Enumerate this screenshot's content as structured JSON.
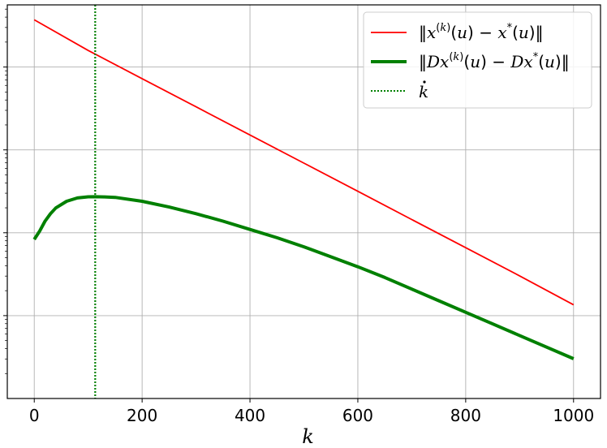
{
  "chart_data": {
    "type": "line",
    "xlabel": "k",
    "ylabel": "",
    "xlim": [
      -50,
      1050
    ],
    "ylim_log10": [
      -5.0,
      -0.25
    ],
    "y_scale": "log",
    "grid": true,
    "legend_position": "top-right",
    "x_ticks": [
      0,
      200,
      400,
      600,
      800,
      1000
    ],
    "x_tick_labels": [
      "0",
      "200",
      "400",
      "600",
      "800",
      "1000"
    ],
    "y_gridlines_log10": [
      -4,
      -3,
      -2,
      -1
    ],
    "series": [
      {
        "name": "‖x^(k)(u) − x*(u)‖",
        "style": "solid",
        "color": "#ff0000",
        "x": [
          0,
          100,
          200,
          300,
          400,
          500,
          600,
          700,
          800,
          900,
          1000
        ],
        "log10_y": [
          -0.43,
          -0.8,
          -1.14,
          -1.48,
          -1.82,
          -2.16,
          -2.5,
          -2.84,
          -3.18,
          -3.52,
          -3.87
        ]
      },
      {
        "name": "‖Dx^(k)(u) − Dx*(u)‖",
        "style": "solid-thick",
        "color": "#008000",
        "x": [
          0,
          10,
          20,
          30,
          40,
          60,
          80,
          100,
          113,
          130,
          150,
          200,
          250,
          300,
          350,
          400,
          450,
          500,
          550,
          600,
          650,
          700,
          750,
          800,
          850,
          900,
          950,
          1000
        ],
        "log10_y": [
          -3.08,
          -2.98,
          -2.86,
          -2.77,
          -2.7,
          -2.62,
          -2.58,
          -2.566,
          -2.565,
          -2.567,
          -2.573,
          -2.62,
          -2.69,
          -2.77,
          -2.86,
          -2.96,
          -3.06,
          -3.17,
          -3.29,
          -3.41,
          -3.54,
          -3.68,
          -3.82,
          -3.96,
          -4.1,
          -4.24,
          -4.38,
          -4.52
        ]
      },
      {
        "name": "k̇",
        "style": "vertical-dotted",
        "color": "#008000",
        "x_value": 113
      }
    ]
  }
}
